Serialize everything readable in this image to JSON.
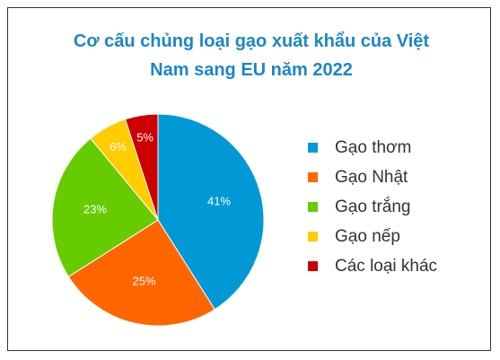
{
  "chart_data": {
    "type": "pie",
    "title": "Cơ cấu chủng loại gạo xuất khẩu của Việt Nam sang EU năm 2022",
    "categories": [
      "Gạo thơm",
      "Gạo Nhật",
      "Gạo trắng",
      "Gạo nếp",
      "Các loại khác"
    ],
    "values": [
      41,
      25,
      23,
      6,
      5
    ],
    "value_labels": [
      "41%",
      "25%",
      "23%",
      "6%",
      "5%"
    ],
    "colors": [
      "#0099d6",
      "#ff6600",
      "#66cc00",
      "#ffcc00",
      "#cc0000"
    ],
    "legend": "right"
  }
}
